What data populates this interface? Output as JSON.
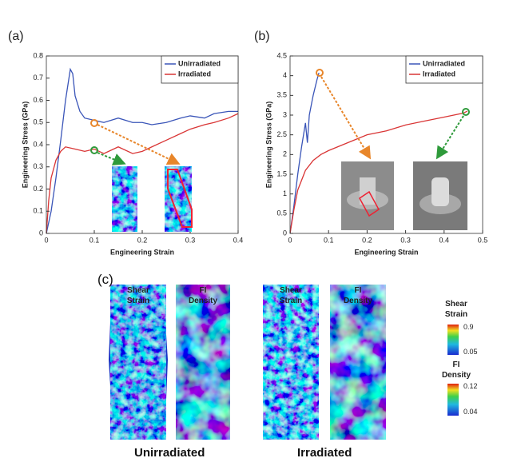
{
  "chart_data": [
    {
      "type": "line",
      "panel": "(a)",
      "x_label": "Engineering Strain",
      "y_label": "Engineering Stress (GPa)",
      "xlim": [
        0,
        0.4
      ],
      "xticks": [
        0,
        0.1,
        0.2,
        0.3,
        0.4
      ],
      "ylim": [
        0,
        0.8
      ],
      "yticks": [
        0,
        0.1,
        0.2,
        0.3,
        0.4,
        0.5,
        0.6,
        0.7,
        0.8
      ],
      "legend": "upper right",
      "series": [
        {
          "name": "Unirradiated",
          "color": "#3a55b8",
          "x": [
            0,
            0.01,
            0.02,
            0.03,
            0.04,
            0.05,
            0.055,
            0.06,
            0.07,
            0.08,
            0.1,
            0.12,
            0.15,
            0.18,
            0.2,
            0.22,
            0.25,
            0.28,
            0.3,
            0.33,
            0.35,
            0.38,
            0.4
          ],
          "values": [
            0,
            0.1,
            0.25,
            0.42,
            0.6,
            0.74,
            0.72,
            0.62,
            0.55,
            0.52,
            0.51,
            0.5,
            0.52,
            0.5,
            0.5,
            0.49,
            0.5,
            0.52,
            0.53,
            0.52,
            0.54,
            0.55,
            0.55
          ]
        },
        {
          "name": "Irradiated",
          "color": "#d93535",
          "x": [
            0,
            0.005,
            0.01,
            0.02,
            0.03,
            0.04,
            0.06,
            0.08,
            0.1,
            0.12,
            0.15,
            0.18,
            0.2,
            0.22,
            0.25,
            0.28,
            0.3,
            0.33,
            0.35,
            0.38,
            0.4
          ],
          "values": [
            0,
            0.15,
            0.25,
            0.33,
            0.37,
            0.39,
            0.38,
            0.37,
            0.38,
            0.36,
            0.39,
            0.36,
            0.37,
            0.39,
            0.42,
            0.45,
            0.47,
            0.49,
            0.5,
            0.52,
            0.54
          ]
        }
      ]
    },
    {
      "type": "line",
      "panel": "(b)",
      "x_label": "Engineering Strain",
      "y_label": "Engineering Stress (GPa)",
      "xlim": [
        0,
        0.5
      ],
      "xticks": [
        0,
        0.1,
        0.2,
        0.3,
        0.4,
        0.5
      ],
      "ylim": [
        0,
        4.5
      ],
      "yticks": [
        0,
        0.5,
        1,
        1.5,
        2,
        2.5,
        3,
        3.5,
        4,
        4.5
      ],
      "legend": "upper right",
      "series": [
        {
          "name": "Unirradiated",
          "color": "#3a55b8",
          "x": [
            0,
            0.01,
            0.02,
            0.03,
            0.04,
            0.045,
            0.05,
            0.06,
            0.07,
            0.075
          ],
          "values": [
            0,
            0.7,
            1.5,
            2.2,
            2.8,
            2.3,
            3.0,
            3.5,
            3.9,
            4.07
          ]
        },
        {
          "name": "Irradiated",
          "color": "#d93535",
          "x": [
            0,
            0.01,
            0.02,
            0.04,
            0.06,
            0.08,
            0.1,
            0.15,
            0.2,
            0.25,
            0.3,
            0.35,
            0.4,
            0.45,
            0.46
          ],
          "values": [
            0,
            0.6,
            1.1,
            1.6,
            1.85,
            2.0,
            2.1,
            2.3,
            2.5,
            2.6,
            2.75,
            2.85,
            2.95,
            3.05,
            3.1
          ]
        }
      ]
    }
  ],
  "panel_c": {
    "panel": "(c)",
    "groups": [
      {
        "name": "Unirradiated",
        "columns": [
          "Shear Strain",
          "FI Density"
        ]
      },
      {
        "name": "Irradiated",
        "columns": [
          "Shear Strain",
          "FI Density"
        ]
      }
    ],
    "colorbars": [
      {
        "title": "Shear Strain",
        "max": 0.9,
        "min": 0.05
      },
      {
        "title": "FI Density",
        "max": 0.12,
        "min": 0.04
      }
    ]
  }
}
